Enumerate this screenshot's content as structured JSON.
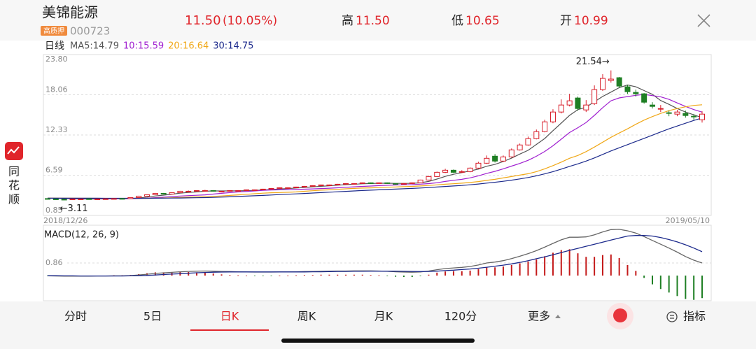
{
  "header": {
    "name": "美锦能源",
    "badge": "高质押",
    "code": "000723",
    "price": "11.50",
    "change": "(10.05%)",
    "stats": [
      {
        "label": "高",
        "value": "11.50"
      },
      {
        "label": "低",
        "value": "10.65"
      },
      {
        "label": "开",
        "value": "10.99"
      }
    ]
  },
  "sidebar": {
    "brand": [
      "同",
      "花",
      "顺"
    ]
  },
  "tabs": {
    "items": [
      "分时",
      "5日",
      "日K",
      "周K",
      "月K",
      "120分",
      "更多"
    ],
    "active": 2,
    "indicator": "指标"
  },
  "chart_data": [
    {
      "type": "candlestick",
      "title": "日线",
      "up_color": "#d81e2a",
      "down_color": "#1f7f24",
      "date_labels": [
        "2018/12/26",
        "2019/05/10"
      ],
      "annotations": [
        "21.54→",
        "←3.11"
      ],
      "ylim": [
        0.85,
        23.8
      ],
      "yticks": [
        {
          "value": 23.8,
          "label": "23.80"
        },
        18.06,
        12.33,
        6.59,
        0.85
      ],
      "grid": true,
      "open": [
        3.25,
        3.2,
        3.15,
        3.12,
        3.18,
        3.22,
        3.18,
        3.2,
        3.22,
        3.26,
        3.25,
        3.4,
        3.6,
        3.8,
        4.0,
        3.9,
        4.1,
        4.25,
        4.3,
        4.35,
        4.4,
        4.28,
        4.3,
        4.38,
        4.4,
        4.48,
        4.5,
        4.6,
        4.7,
        4.78,
        4.8,
        4.9,
        5.0,
        5.1,
        5.18,
        5.2,
        5.3,
        5.38,
        5.4,
        5.5,
        5.4,
        5.5,
        5.4,
        5.3,
        5.4,
        5.5,
        5.9,
        6.4,
        7.0,
        7.3,
        7.0,
        7.1,
        7.6,
        8.3,
        9.3,
        8.6,
        9.2,
        10.2,
        10.9,
        11.8,
        12.8,
        14.2,
        15.6,
        16.6,
        17.6,
        15.9,
        16.8,
        18.8,
        20.1,
        20.5,
        19.2,
        18.4,
        18.2,
        16.6,
        16.0,
        15.5,
        15.3,
        15.4,
        15.0,
        14.5
      ],
      "high": [
        3.3,
        3.25,
        3.2,
        3.25,
        3.25,
        3.28,
        3.25,
        3.27,
        3.3,
        3.3,
        3.45,
        3.65,
        3.85,
        4.05,
        4.05,
        4.15,
        4.35,
        4.4,
        4.45,
        4.5,
        4.45,
        4.35,
        4.45,
        4.45,
        4.55,
        4.55,
        4.65,
        4.75,
        4.85,
        4.85,
        4.95,
        5.05,
        5.15,
        5.25,
        5.25,
        5.35,
        5.45,
        5.45,
        5.55,
        5.55,
        5.55,
        5.55,
        5.45,
        5.45,
        5.55,
        5.95,
        6.5,
        7.1,
        7.5,
        7.4,
        7.3,
        7.7,
        8.5,
        9.4,
        9.6,
        9.4,
        10.4,
        11.1,
        12.1,
        13.1,
        14.5,
        16.0,
        17.4,
        18.2,
        17.8,
        17.3,
        19.4,
        21.0,
        21.54,
        20.6,
        19.5,
        18.8,
        18.3,
        17.0,
        16.6,
        15.8,
        15.9,
        15.8,
        15.3,
        15.7
      ],
      "low": [
        3.18,
        3.14,
        3.11,
        3.12,
        3.16,
        3.18,
        3.16,
        3.18,
        3.2,
        3.22,
        3.22,
        3.38,
        3.58,
        3.78,
        3.85,
        3.88,
        4.08,
        4.2,
        4.28,
        4.32,
        4.25,
        4.25,
        4.28,
        4.35,
        4.38,
        4.45,
        4.48,
        4.58,
        4.68,
        4.75,
        4.78,
        4.88,
        4.98,
        5.08,
        5.15,
        5.18,
        5.28,
        5.35,
        5.38,
        5.35,
        5.38,
        5.35,
        5.25,
        5.28,
        5.38,
        5.45,
        5.85,
        6.35,
        6.9,
        6.9,
        6.9,
        7.0,
        7.5,
        8.2,
        8.4,
        8.5,
        9.1,
        10.1,
        10.8,
        11.7,
        12.7,
        14.0,
        15.4,
        16.4,
        15.8,
        15.6,
        16.6,
        18.6,
        19.8,
        19.0,
        18.2,
        17.8,
        16.8,
        16.1,
        15.6,
        15.0,
        15.0,
        14.8,
        14.5,
        14.1
      ],
      "close": [
        3.2,
        3.15,
        3.12,
        3.2,
        3.2,
        3.2,
        3.2,
        3.22,
        3.25,
        3.25,
        3.4,
        3.6,
        3.8,
        4.0,
        3.9,
        4.1,
        4.3,
        4.3,
        4.4,
        4.4,
        4.3,
        4.3,
        4.4,
        4.4,
        4.5,
        4.5,
        4.6,
        4.7,
        4.8,
        4.8,
        4.9,
        5.0,
        5.1,
        5.2,
        5.2,
        5.3,
        5.4,
        5.4,
        5.5,
        5.4,
        5.5,
        5.4,
        5.3,
        5.4,
        5.5,
        5.9,
        6.4,
        7.0,
        7.3,
        7.0,
        7.1,
        7.6,
        8.3,
        9.0,
        8.6,
        9.2,
        10.2,
        10.9,
        11.8,
        12.8,
        14.2,
        15.6,
        16.6,
        17.2,
        16.1,
        16.6,
        18.8,
        20.4,
        20.3,
        19.3,
        18.5,
        18.2,
        17.0,
        16.4,
        16.1,
        15.4,
        15.6,
        15.1,
        14.9,
        15.3
      ],
      "series": [
        {
          "name": "MA5:14.79",
          "color": "#555555",
          "values": [
            3.3,
            3.28,
            3.25,
            3.22,
            3.19,
            3.17,
            3.19,
            3.2,
            3.21,
            3.22,
            3.26,
            3.34,
            3.46,
            3.62,
            3.74,
            3.88,
            4.02,
            4.12,
            4.2,
            4.3,
            4.34,
            4.34,
            4.34,
            4.36,
            4.38,
            4.42,
            4.48,
            4.54,
            4.62,
            4.68,
            4.76,
            4.84,
            4.92,
            5.0,
            5.08,
            5.16,
            5.24,
            5.3,
            5.36,
            5.4,
            5.44,
            5.44,
            5.42,
            5.42,
            5.42,
            5.5,
            5.7,
            6.04,
            6.42,
            6.72,
            6.96,
            7.2,
            7.46,
            7.86,
            8.12,
            8.54,
            9.02,
            9.6,
            10.14,
            10.98,
            11.82,
            12.94,
            14.02,
            15.12,
            15.94,
            16.3,
            17.06,
            17.82,
            18.44,
            19.08,
            19.46,
            19.2,
            18.66,
            18.12,
            17.24,
            16.7,
            16.1,
            15.6,
            15.2,
            14.79
          ]
        },
        {
          "name": "10:15.59",
          "color": "#a020d0",
          "values": [
            3.3,
            3.3,
            3.29,
            3.28,
            3.27,
            3.25,
            3.23,
            3.22,
            3.21,
            3.21,
            3.22,
            3.25,
            3.3,
            3.38,
            3.46,
            3.53,
            3.61,
            3.67,
            3.72,
            3.78,
            3.89,
            4.0,
            4.1,
            4.2,
            4.26,
            4.34,
            4.42,
            4.48,
            4.5,
            4.52,
            4.55,
            4.59,
            4.63,
            4.68,
            4.73,
            4.79,
            4.86,
            4.93,
            4.99,
            5.04,
            5.1,
            5.15,
            5.19,
            5.22,
            5.24,
            5.31,
            5.39,
            5.51,
            5.7,
            5.86,
            6.0,
            6.21,
            6.5,
            6.85,
            7.14,
            7.5,
            7.88,
            8.26,
            8.71,
            9.29,
            9.97,
            10.79,
            11.73,
            12.67,
            13.36,
            14.1,
            15.12,
            16.23,
            17.2,
            17.61,
            17.8,
            17.98,
            18.11,
            17.94,
            17.77,
            17.4,
            16.9,
            16.4,
            15.95,
            15.59
          ]
        },
        {
          "name": "20:16.64",
          "color": "#f0a818",
          "values": [
            3.3,
            3.3,
            3.3,
            3.3,
            3.29,
            3.29,
            3.28,
            3.28,
            3.27,
            3.27,
            3.27,
            3.27,
            3.28,
            3.3,
            3.33,
            3.37,
            3.41,
            3.45,
            3.48,
            3.51,
            3.56,
            3.62,
            3.7,
            3.78,
            3.86,
            3.94,
            4.02,
            4.08,
            4.11,
            4.15,
            4.2,
            4.29,
            4.37,
            4.45,
            4.5,
            4.57,
            4.64,
            4.7,
            4.75,
            4.78,
            4.82,
            4.87,
            4.91,
            4.95,
            4.99,
            5.05,
            5.12,
            5.21,
            5.3,
            5.37,
            5.45,
            5.55,
            5.68,
            5.85,
            6.0,
            6.2,
            6.4,
            6.6,
            6.8,
            7.1,
            7.5,
            7.95,
            8.45,
            9.0,
            9.4,
            9.95,
            10.6,
            11.3,
            12.0,
            12.6,
            13.2,
            13.85,
            14.45,
            14.95,
            15.4,
            15.8,
            16.1,
            16.35,
            16.55,
            16.64
          ]
        },
        {
          "name": "30:14.75",
          "color": "#1c2a8c",
          "values": [
            3.3,
            3.3,
            3.3,
            3.3,
            3.3,
            3.3,
            3.3,
            3.29,
            3.29,
            3.29,
            3.29,
            3.29,
            3.29,
            3.3,
            3.31,
            3.32,
            3.33,
            3.35,
            3.37,
            3.39,
            3.42,
            3.46,
            3.5,
            3.55,
            3.6,
            3.65,
            3.7,
            3.76,
            3.82,
            3.87,
            3.92,
            3.98,
            4.04,
            4.1,
            4.16,
            4.22,
            4.28,
            4.34,
            4.4,
            4.45,
            4.5,
            4.55,
            4.6,
            4.65,
            4.7,
            4.76,
            4.82,
            4.9,
            4.98,
            5.05,
            5.12,
            5.22,
            5.33,
            5.46,
            5.58,
            5.72,
            5.88,
            6.06,
            6.26,
            6.5,
            6.78,
            7.1,
            7.46,
            7.84,
            8.2,
            8.6,
            9.05,
            9.55,
            10.05,
            10.5,
            10.95,
            11.4,
            11.85,
            12.3,
            12.75,
            13.2,
            13.6,
            14.0,
            14.4,
            14.75
          ]
        }
      ]
    },
    {
      "type": "macd",
      "title": "MACD(12, 26, 9)",
      "ylim": [
        -1.72,
        3.44
      ],
      "yticks": [
        0.86
      ],
      "grid": true,
      "up_color": "#c41a1a",
      "down_color": "#1f7f24",
      "series": [
        {
          "color": "#666666",
          "values": [
            -0.02,
            -0.03,
            -0.04,
            -0.04,
            -0.04,
            -0.04,
            -0.03,
            -0.03,
            -0.02,
            -0.02,
            0.0,
            0.04,
            0.09,
            0.15,
            0.18,
            0.22,
            0.26,
            0.28,
            0.3,
            0.31,
            0.3,
            0.28,
            0.27,
            0.26,
            0.25,
            0.24,
            0.24,
            0.24,
            0.25,
            0.25,
            0.26,
            0.27,
            0.28,
            0.29,
            0.3,
            0.31,
            0.31,
            0.32,
            0.32,
            0.32,
            0.31,
            0.29,
            0.26,
            0.24,
            0.23,
            0.25,
            0.31,
            0.4,
            0.48,
            0.52,
            0.56,
            0.62,
            0.72,
            0.86,
            0.92,
            1.02,
            1.16,
            1.32,
            1.5,
            1.7,
            1.94,
            2.2,
            2.44,
            2.62,
            2.62,
            2.64,
            2.78,
            2.98,
            3.14,
            3.16,
            3.06,
            2.9,
            2.66,
            2.4,
            2.14,
            1.88,
            1.6,
            1.3,
            1.05,
            0.86
          ]
        },
        {
          "color": "#1c2a8c",
          "values": [
            -0.01,
            -0.01,
            -0.02,
            -0.02,
            -0.03,
            -0.03,
            -0.03,
            -0.03,
            -0.03,
            -0.03,
            -0.02,
            -0.01,
            0.01,
            0.04,
            0.07,
            0.1,
            0.13,
            0.16,
            0.19,
            0.21,
            0.23,
            0.24,
            0.25,
            0.25,
            0.25,
            0.25,
            0.25,
            0.25,
            0.25,
            0.25,
            0.25,
            0.25,
            0.26,
            0.26,
            0.27,
            0.28,
            0.28,
            0.29,
            0.29,
            0.3,
            0.3,
            0.3,
            0.3,
            0.29,
            0.28,
            0.27,
            0.28,
            0.3,
            0.34,
            0.37,
            0.41,
            0.45,
            0.5,
            0.57,
            0.64,
            0.71,
            0.8,
            0.9,
            1.02,
            1.15,
            1.28,
            1.42,
            1.57,
            1.72,
            1.86,
            2.0,
            2.14,
            2.28,
            2.42,
            2.56,
            2.7,
            2.74,
            2.74,
            2.7,
            2.6,
            2.46,
            2.3,
            2.1,
            1.88,
            1.63
          ]
        }
      ],
      "hist": [
        -0.02,
        -0.04,
        -0.04,
        -0.04,
        -0.02,
        -0.02,
        0,
        0,
        0.02,
        0.02,
        0.04,
        0.1,
        0.16,
        0.22,
        0.22,
        0.24,
        0.26,
        0.24,
        0.22,
        0.2,
        0.14,
        0.08,
        0.04,
        0.02,
        0,
        -0.02,
        -0.02,
        -0.02,
        0,
        0,
        0.02,
        0.04,
        0.04,
        0.06,
        0.06,
        0.06,
        0.06,
        0.06,
        0.06,
        0.04,
        0.02,
        -0.02,
        -0.08,
        -0.1,
        -0.1,
        -0.04,
        0.06,
        0.2,
        0.28,
        0.3,
        0.3,
        0.34,
        0.44,
        0.58,
        0.56,
        0.62,
        0.72,
        0.84,
        0.96,
        1.1,
        1.32,
        1.56,
        1.74,
        1.8,
        1.52,
        1.28,
        1.28,
        1.4,
        1.44,
        1.2,
        0.72,
        0.32,
        -0.16,
        -0.6,
        -0.92,
        -1.16,
        -1.4,
        -1.6,
        -1.66,
        -1.54
      ]
    }
  ]
}
